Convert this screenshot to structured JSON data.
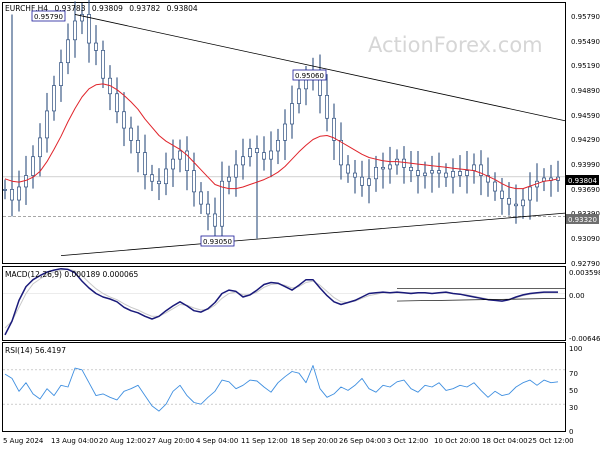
{
  "chart_data": {
    "type": "line",
    "colors": {
      "candles": "#2f4f7f",
      "moving_average": "#e0242b",
      "trendline": "#000000",
      "macd": "#1a1a7a",
      "macd_signal": "#c9c9c9",
      "rsi": "#3f8fe0",
      "label_border": "#1a1a9a"
    },
    "watermark": "ActionForex.com",
    "main": {
      "title": "EURCHF,H4",
      "ohlc": [
        "0.93783",
        "0.93809",
        "0.93782",
        "0.93804"
      ],
      "ylim": [
        0.9275,
        0.9593
      ],
      "y_ticks": [
        "0.95790",
        "0.95490",
        "0.95190",
        "0.94890",
        "0.94590",
        "0.94290",
        "0.93990",
        "0.93690",
        "0.93390",
        "0.93090",
        "0.92790"
      ],
      "current_price": "0.93804",
      "support_level": "0.93320",
      "hidden_tick_label": "0.93390",
      "annotations": [
        {
          "text": "0.95790",
          "x": 1,
          "value": 0.9579,
          "anchor": "high"
        },
        {
          "text": "0.95060",
          "x": 46,
          "value": 0.9506,
          "anchor": "high"
        },
        {
          "text": "0.93050",
          "x": 36,
          "value": 0.9305,
          "anchor": "low"
        }
      ],
      "trendlines": [
        {
          "name": "upper",
          "from": [
            10,
            0.9579
          ],
          "to": [
            90,
            0.9449
          ]
        },
        {
          "name": "lower",
          "from": [
            8,
            0.9284
          ],
          "to": [
            90,
            0.9336
          ]
        },
        {
          "name": "support",
          "from": [
            0,
            0.9332
          ],
          "to": [
            90,
            0.9332
          ]
        }
      ],
      "closes": [
        0.9365,
        0.9352,
        0.9368,
        0.9382,
        0.9405,
        0.9428,
        0.9461,
        0.9492,
        0.952,
        0.9548,
        0.9571,
        0.9579,
        0.9544,
        0.9535,
        0.9501,
        0.9482,
        0.946,
        0.944,
        0.9425,
        0.941,
        0.9383,
        0.9375,
        0.9372,
        0.939,
        0.9402,
        0.9412,
        0.9388,
        0.9362,
        0.9347,
        0.9335,
        0.932,
        0.9375,
        0.938,
        0.9395,
        0.9405,
        0.9415,
        0.941,
        0.9402,
        0.9412,
        0.9425,
        0.9445,
        0.947,
        0.9488,
        0.95,
        0.9506,
        0.948,
        0.9452,
        0.9425,
        0.9395,
        0.9385,
        0.938,
        0.937,
        0.9378,
        0.9392,
        0.939,
        0.9395,
        0.9402,
        0.9392,
        0.9388,
        0.9382,
        0.9385,
        0.9388,
        0.9385,
        0.938,
        0.9387,
        0.9382,
        0.9388,
        0.9395,
        0.9382,
        0.9374,
        0.9363,
        0.9354,
        0.9347,
        0.9345,
        0.9352,
        0.9368,
        0.9375,
        0.9379,
        0.9376,
        0.938
      ],
      "moving_average": [
        0.9378,
        0.9375,
        0.9374,
        0.9376,
        0.938,
        0.9387,
        0.9399,
        0.9414,
        0.943,
        0.9448,
        0.9464,
        0.9478,
        0.9488,
        0.9493,
        0.9494,
        0.9492,
        0.9487,
        0.948,
        0.9472,
        0.9463,
        0.9451,
        0.9441,
        0.9431,
        0.9424,
        0.9419,
        0.9414,
        0.9407,
        0.9398,
        0.9389,
        0.938,
        0.9371,
        0.9368,
        0.9366,
        0.9366,
        0.9368,
        0.9371,
        0.9374,
        0.9377,
        0.9381,
        0.9386,
        0.9393,
        0.9402,
        0.9411,
        0.9419,
        0.9426,
        0.943,
        0.9431,
        0.9428,
        0.9423,
        0.9418,
        0.9413,
        0.9408,
        0.9404,
        0.9402,
        0.94,
        0.9399,
        0.9399,
        0.9398,
        0.9397,
        0.9396,
        0.9395,
        0.9394,
        0.9393,
        0.9392,
        0.9391,
        0.939,
        0.9389,
        0.9388,
        0.9385,
        0.9381,
        0.9377,
        0.9372,
        0.9368,
        0.9366,
        0.9366,
        0.9369,
        0.9372,
        0.9375,
        0.9376,
        0.9378
      ]
    },
    "macd": {
      "label": "MACD(12,26,9) 0.000189 0.000065",
      "ylim": [
        -0.0066,
        0.0037
      ],
      "y_ticks": [
        "0.003598",
        "0.00",
        "-0.006468"
      ],
      "current": "0.00",
      "macd_line": [
        -0.006,
        -0.004,
        -0.001,
        0.001,
        0.002,
        0.0026,
        0.0031,
        0.0034,
        0.0036,
        0.0035,
        0.003,
        0.0018,
        0.0008,
        0.0,
        -0.0005,
        -0.0008,
        -0.0012,
        -0.002,
        -0.0025,
        -0.0028,
        -0.0033,
        -0.0037,
        -0.0033,
        -0.0025,
        -0.0018,
        -0.0012,
        -0.0018,
        -0.0025,
        -0.0027,
        -0.0022,
        -0.0013,
        0.0,
        0.0005,
        0.0003,
        -0.0005,
        -0.0002,
        0.0005,
        0.0013,
        0.0016,
        0.0015,
        0.001,
        0.0005,
        0.0012,
        0.002,
        0.002,
        0.0008,
        -0.0003,
        -0.0012,
        -0.0016,
        -0.0013,
        -0.001,
        -0.0005,
        0.0,
        0.0001,
        0.0002,
        0.0001,
        0.0002,
        0.0001,
        0.0,
        0.0001,
        0.0001,
        0.0,
        0.0001,
        0.0002,
        0.0,
        -0.0001,
        -0.0003,
        -0.0005,
        -0.0007,
        -0.0009,
        -0.001,
        -0.0011,
        -0.0009,
        -0.0005,
        -0.0002,
        0.0,
        0.0001,
        0.0002,
        0.0002,
        0.0002
      ],
      "signal_line": [
        -0.005,
        -0.004,
        -0.002,
        0.0,
        0.0014,
        0.0021,
        0.0027,
        0.0031,
        0.0034,
        0.0035,
        0.0033,
        0.0026,
        0.0016,
        0.0007,
        0.0,
        -0.0005,
        -0.0009,
        -0.0015,
        -0.002,
        -0.0024,
        -0.0029,
        -0.0033,
        -0.0033,
        -0.0028,
        -0.0022,
        -0.0016,
        -0.0017,
        -0.0021,
        -0.0024,
        -0.0023,
        -0.0017,
        -0.0007,
        0.0,
        0.0002,
        -0.0002,
        -0.0002,
        0.0002,
        0.0009,
        0.0013,
        0.0014,
        0.0012,
        0.0008,
        0.001,
        0.0016,
        0.0018,
        0.0012,
        0.0003,
        -0.0006,
        -0.0012,
        -0.0013,
        -0.0011,
        -0.0007,
        -0.0003,
        -0.0001,
        0.0001,
        0.0001,
        0.0001,
        0.0001,
        0.0001,
        0.0001,
        0.0001,
        0.0,
        0.0001,
        0.0001,
        0.0,
        -0.0001,
        -0.0002,
        -0.0004,
        -0.0006,
        -0.0008,
        -0.0009,
        -0.001,
        -0.0009,
        -0.0006,
        -0.0003,
        -0.0001,
        0.0,
        0.0001,
        0.0001,
        0.0001
      ],
      "trendlines": [
        {
          "name": "upper",
          "from": [
            56,
            0.0007
          ],
          "to": [
            80,
            0.0007
          ]
        },
        {
          "name": "lower",
          "from": [
            56,
            -0.0011
          ],
          "to": [
            88,
            -0.0007
          ]
        }
      ]
    },
    "rsi": {
      "label": "RSI(14) 56.4197",
      "ylim": [
        0,
        100
      ],
      "y_ticks": [
        "100",
        "70",
        "50",
        "30",
        "0"
      ],
      "values": [
        65,
        60,
        45,
        55,
        42,
        36,
        48,
        40,
        52,
        50,
        72,
        70,
        55,
        40,
        42,
        38,
        35,
        45,
        48,
        52,
        40,
        28,
        22,
        30,
        45,
        52,
        40,
        32,
        30,
        38,
        45,
        58,
        56,
        48,
        52,
        58,
        57,
        50,
        44,
        55,
        62,
        68,
        66,
        55,
        75,
        48,
        38,
        42,
        50,
        46,
        52,
        60,
        48,
        44,
        52,
        50,
        56,
        58,
        48,
        44,
        52,
        50,
        55,
        46,
        48,
        52,
        50,
        55,
        46,
        38,
        45,
        40,
        42,
        50,
        55,
        58,
        52,
        58,
        55,
        56
      ]
    },
    "x_ticks": [
      "5 Aug 2024",
      "13 Aug 04:00",
      "20 Aug 12:00",
      "27 Aug 20:00",
      "4 Sep 04:00",
      "11 Sep 12:00",
      "18 Sep 20:00",
      "26 Sep 04:00",
      "3 Oct 12:00",
      "10 Oct 20:00",
      "18 Oct 04:00",
      "25 Oct 12:00"
    ]
  }
}
